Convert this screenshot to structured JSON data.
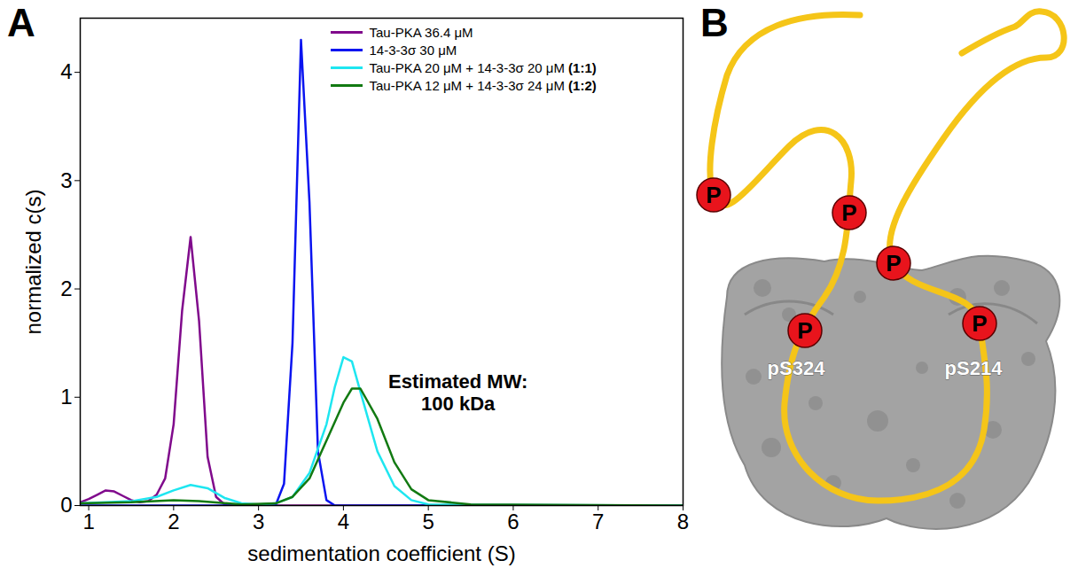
{
  "chart_data": {
    "type": "line",
    "panel_label": "A",
    "xlabel": "sedimentation coefficient (S)",
    "ylabel": "normalized c(s)",
    "xlim": [
      0.9,
      8
    ],
    "ylim": [
      0,
      4.5
    ],
    "xticks": [
      1,
      2,
      3,
      4,
      5,
      6,
      7,
      8
    ],
    "yticks": [
      0,
      1,
      2,
      3,
      4
    ],
    "grid": false,
    "legend": "upper right",
    "annotation": {
      "text": "Estimated MW:\n100 kDa",
      "x": 5.35,
      "y": 1.05
    },
    "series": [
      {
        "name": "Tau-PKA 36.4 μM",
        "color": "#800a8c",
        "x": [
          0.9,
          1.0,
          1.1,
          1.2,
          1.3,
          1.4,
          1.5,
          1.6,
          1.7,
          1.8,
          1.9,
          2.0,
          2.1,
          2.2,
          2.3,
          2.4,
          2.5,
          2.6,
          2.7,
          8.0
        ],
        "values": [
          0.03,
          0.06,
          0.1,
          0.14,
          0.13,
          0.09,
          0.05,
          0.03,
          0.04,
          0.1,
          0.25,
          0.75,
          1.8,
          2.48,
          1.7,
          0.45,
          0.08,
          0.01,
          0,
          0
        ]
      },
      {
        "name": "14-3-3σ 30 μM",
        "color": "#0a14f0",
        "x": [
          0.9,
          3.0,
          3.2,
          3.3,
          3.4,
          3.5,
          3.6,
          3.7,
          3.8,
          3.9,
          8.0
        ],
        "values": [
          0,
          0,
          0,
          0.2,
          1.5,
          4.3,
          2.8,
          0.5,
          0.05,
          0,
          0
        ]
      },
      {
        "name": "Tau-PKA 20 μM + 14-3-3σ 20 μM (1:1)",
        "color": "#1ee6f0",
        "x": [
          0.9,
          1.5,
          1.8,
          2.0,
          2.2,
          2.4,
          2.6,
          2.8,
          3.0,
          3.2,
          3.4,
          3.6,
          3.8,
          3.9,
          4.0,
          4.1,
          4.2,
          4.4,
          4.6,
          4.8,
          5.0,
          8.0
        ],
        "values": [
          0.02,
          0.04,
          0.08,
          0.14,
          0.19,
          0.16,
          0.07,
          0.02,
          0.01,
          0.02,
          0.08,
          0.3,
          0.75,
          1.1,
          1.37,
          1.33,
          1.05,
          0.5,
          0.18,
          0.05,
          0.01,
          0
        ]
      },
      {
        "name": "Tau-PKA 12 μM + 14-3-3σ 24 μM (1:2)",
        "color": "#127a12",
        "x": [
          0.9,
          1.5,
          2.0,
          2.3,
          2.8,
          3.2,
          3.4,
          3.6,
          3.8,
          4.0,
          4.1,
          4.2,
          4.4,
          4.6,
          4.8,
          5.0,
          5.5,
          8.0
        ],
        "values": [
          0.02,
          0.03,
          0.05,
          0.04,
          0.01,
          0.02,
          0.08,
          0.25,
          0.6,
          0.95,
          1.08,
          1.08,
          0.8,
          0.4,
          0.15,
          0.05,
          0.01,
          0
        ]
      }
    ]
  },
  "panel_b": {
    "label": "B",
    "phospho_label": "P",
    "sites": [
      "pS324",
      "pS214"
    ]
  }
}
